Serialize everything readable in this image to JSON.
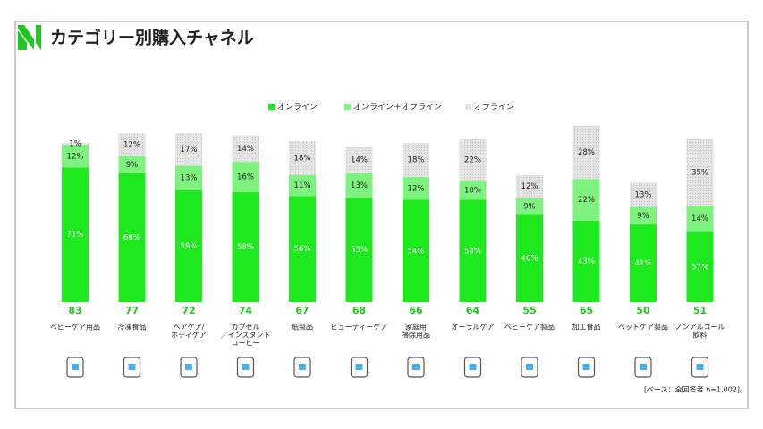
{
  "chart_data": {
    "type": "stacked_bar",
    "title": "カテゴリー別購入チャネル",
    "categories": [
      [
        "ベビーケア用品"
      ],
      [
        "冷凍食品"
      ],
      [
        "ヘアケア/",
        "ボディケア"
      ],
      [
        "カプセル",
        "／インスタント",
        "コーヒー"
      ],
      [
        "紙製品"
      ],
      [
        "ビューティーケア"
      ],
      [
        "家庭用",
        "掃除用品"
      ],
      [
        "オーラルケア"
      ],
      [
        "ベビーケア製品"
      ],
      [
        "加工食品"
      ],
      [
        "ペットケア製品"
      ],
      [
        "ノンアルコール",
        "飲料"
      ]
    ],
    "counts": [
      83,
      77,
      72,
      74,
      67,
      68,
      66,
      64,
      55,
      65,
      50,
      51
    ],
    "ylim": [
      0,
      100
    ],
    "legend": "top",
    "series": [
      {
        "name": "オンライン",
        "color": "#1ee81e",
        "values": [
          71,
          68,
          59,
          58,
          56,
          55,
          54,
          54,
          46,
          43,
          41,
          37
        ],
        "value_labels": [
          "71%",
          "68%",
          "59%",
          "58%",
          "56%",
          "55%",
          "54%",
          "54%",
          "46%",
          "43%",
          "41%",
          "37%"
        ]
      },
      {
        "name": "オンライン＋オフライン",
        "color": "#7ef27e",
        "values": [
          12,
          9,
          13,
          16,
          11,
          13,
          12,
          10,
          9,
          22,
          9,
          14
        ],
        "value_labels": [
          "12%",
          "9%",
          "13%",
          "16%",
          "11%",
          "13%",
          "12%",
          "10%",
          "9%",
          "22%",
          "9%",
          "14%"
        ]
      },
      {
        "name": "オフライン",
        "color": "#d9d9d9",
        "values": [
          1,
          12,
          17,
          14,
          18,
          14,
          18,
          22,
          12,
          28,
          13,
          35
        ],
        "value_labels": [
          "1%",
          "12%",
          "17%",
          "14%",
          "18%",
          "14%",
          "18%",
          "22%",
          "12%",
          "28%",
          "13%",
          "35%"
        ]
      }
    ],
    "footnote": "[ベース：全回答者 n=1,002]。"
  }
}
